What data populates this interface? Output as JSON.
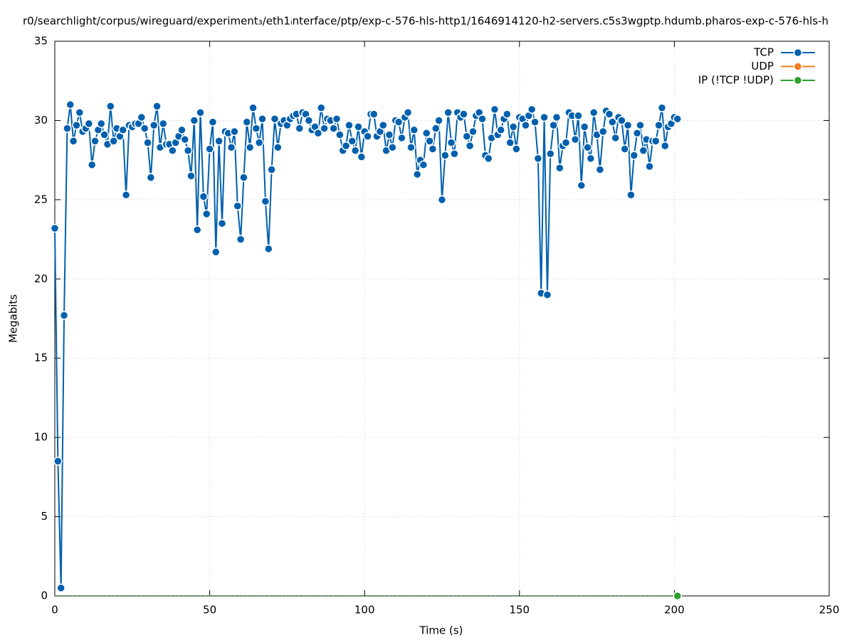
{
  "chart_data": {
    "type": "line",
    "title": "r0/searchlight/corpus/wireguard/experiment₃/eth1ᵢnterface/ptp/exp-c-576-hls-http1/1646914120-h2-servers.c5s3wgptp.hdumb.pharos-exp-c-576-hls-h",
    "x_label": "Time (s)",
    "y_label": "Megabits",
    "xlim": [
      0,
      250
    ],
    "xticks": [
      0,
      50,
      100,
      150,
      200,
      250
    ],
    "ylim": [
      0,
      35
    ],
    "yticks": [
      0,
      5,
      10,
      15,
      20,
      25,
      30,
      35
    ],
    "grid": true,
    "legend": "top-right",
    "series": [
      {
        "name": "TCP",
        "color": "#0060ad",
        "x": [
          0,
          1,
          2,
          3,
          4,
          5,
          6,
          7,
          8,
          9,
          10,
          11,
          12,
          13,
          14,
          15,
          16,
          17,
          18,
          19,
          20,
          21,
          22,
          23,
          24,
          25,
          26,
          27,
          28,
          29,
          30,
          31,
          32,
          33,
          34,
          35,
          36,
          37,
          38,
          39,
          40,
          41,
          42,
          43,
          44,
          45,
          46,
          47,
          48,
          49,
          50,
          51,
          52,
          53,
          54,
          55,
          56,
          57,
          58,
          59,
          60,
          61,
          62,
          63,
          64,
          65,
          66,
          67,
          68,
          69,
          70,
          71,
          72,
          73,
          74,
          75,
          76,
          77,
          78,
          79,
          80,
          81,
          82,
          83,
          84,
          85,
          86,
          87,
          88,
          89,
          90,
          91,
          92,
          93,
          94,
          95,
          96,
          97,
          98,
          99,
          100,
          101,
          102,
          103,
          104,
          105,
          106,
          107,
          108,
          109,
          110,
          111,
          112,
          113,
          114,
          115,
          116,
          117,
          118,
          119,
          120,
          121,
          122,
          123,
          124,
          125,
          126,
          127,
          128,
          129,
          130,
          131,
          132,
          133,
          134,
          135,
          136,
          137,
          138,
          139,
          140,
          141,
          142,
          143,
          144,
          145,
          146,
          147,
          148,
          149,
          150,
          151,
          152,
          153,
          154,
          155,
          156,
          157,
          158,
          159,
          160,
          161,
          162,
          163,
          164,
          165,
          166,
          167,
          168,
          169,
          170,
          171,
          172,
          173,
          174,
          175,
          176,
          177,
          178,
          179,
          180,
          181,
          182,
          183,
          184,
          185,
          186,
          187,
          188,
          189,
          190,
          191,
          192,
          193,
          194,
          195,
          196,
          197,
          198,
          199,
          200,
          201
        ],
        "values": [
          23.2,
          8.5,
          0.5,
          17.7,
          29.5,
          31.0,
          28.7,
          29.7,
          30.5,
          29.3,
          29.5,
          29.8,
          27.2,
          28.7,
          29.4,
          29.8,
          29.1,
          28.5,
          30.9,
          28.7,
          29.5,
          29.0,
          29.4,
          25.3,
          29.7,
          29.6,
          29.8,
          29.8,
          30.2,
          29.5,
          28.6,
          26.4,
          29.7,
          30.9,
          28.3,
          29.8,
          28.5,
          28.5,
          28.1,
          28.6,
          29.0,
          29.4,
          28.8,
          28.1,
          26.5,
          30.0,
          23.1,
          30.5,
          25.2,
          24.1,
          28.2,
          29.9,
          21.7,
          28.7,
          23.5,
          29.3,
          29.2,
          28.3,
          29.3,
          24.6,
          22.5,
          26.4,
          29.9,
          28.3,
          30.8,
          29.5,
          28.6,
          30.1,
          24.9,
          21.9,
          26.9,
          30.1,
          28.3,
          29.8,
          30.0,
          29.7,
          30.1,
          30.3,
          30.4,
          29.5,
          30.5,
          30.4,
          30.0,
          29.4,
          29.6,
          29.2,
          30.8,
          29.5,
          30.1,
          30.0,
          29.5,
          30.1,
          29.1,
          28.1,
          28.4,
          29.7,
          28.7,
          28.1,
          29.6,
          27.7,
          29.3,
          29.0,
          30.4,
          30.4,
          29.0,
          29.3,
          29.7,
          28.1,
          29.1,
          28.3,
          30.0,
          29.9,
          28.9,
          30.2,
          30.5,
          28.3,
          29.4,
          26.6,
          27.5,
          27.2,
          29.2,
          28.7,
          28.2,
          29.5,
          30.0,
          25.0,
          27.8,
          30.5,
          28.6,
          27.9,
          30.5,
          30.2,
          30.4,
          29.0,
          28.4,
          29.3,
          30.3,
          30.5,
          30.1,
          27.8,
          27.6,
          28.9,
          30.7,
          29.1,
          29.4,
          30.1,
          30.4,
          28.6,
          29.6,
          28.2,
          30.2,
          30.1,
          29.7,
          30.3,
          30.7,
          29.9,
          27.6,
          19.1,
          30.2,
          19.0,
          27.9,
          29.7,
          30.2,
          27.0,
          28.4,
          28.6,
          30.5,
          30.3,
          28.8,
          30.3,
          25.9,
          29.6,
          28.3,
          27.6,
          30.5,
          29.1,
          26.9,
          29.3,
          30.6,
          30.4,
          29.9,
          28.9,
          30.2,
          30.0,
          28.2,
          29.7,
          25.3,
          27.8,
          29.2,
          29.7,
          28.1,
          28.8,
          27.1,
          28.7,
          28.7,
          29.7,
          30.8,
          28.4,
          29.6,
          29.8,
          30.2,
          30.1
        ]
      },
      {
        "name": "UDP",
        "color": "#f07f20",
        "x": [],
        "values": []
      },
      {
        "name": "IP (!TCP  !UDP)",
        "color": "#2ca02c",
        "x": [
          0,
          201
        ],
        "values": [
          0,
          0
        ]
      }
    ]
  }
}
